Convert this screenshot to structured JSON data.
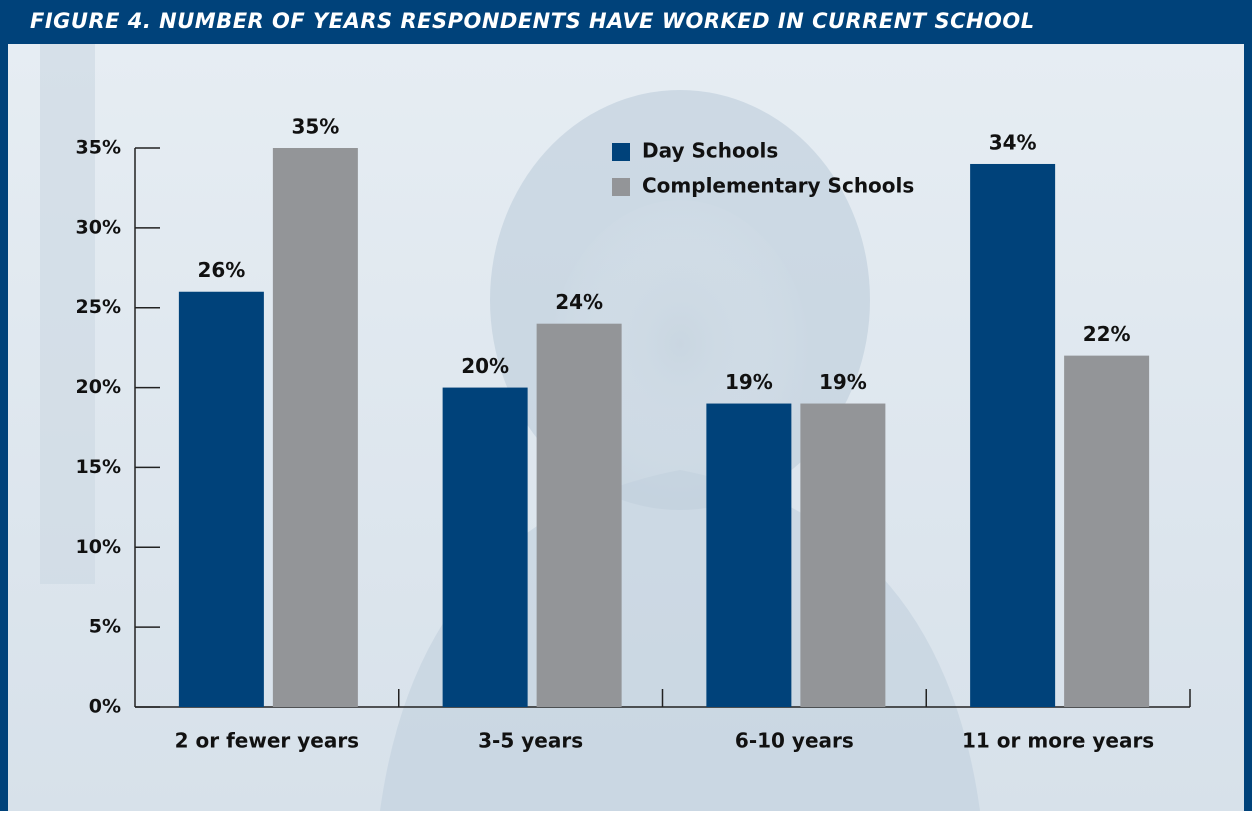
{
  "chart_data": {
    "type": "bar",
    "title": "FIGURE 4. NUMBER OF YEARS RESPONDENTS HAVE WORKED IN CURRENT SCHOOL",
    "categories": [
      "2 or fewer years",
      "3-5 years",
      "6-10 years",
      "11 or more years"
    ],
    "series": [
      {
        "name": "Day Schools",
        "color": "#00427a",
        "values": [
          26,
          20,
          19,
          34
        ],
        "value_labels": [
          "26%",
          "20%",
          "19%",
          "34%"
        ]
      },
      {
        "name": "Complementary Schools",
        "color": "#939598",
        "values": [
          35,
          24,
          19,
          22
        ],
        "value_labels": [
          "35%",
          "24%",
          "19%",
          "22%"
        ]
      }
    ],
    "ylim": [
      0,
      35
    ],
    "yticks": [
      {
        "value": 0,
        "label": "0%"
      },
      {
        "value": 5,
        "label": "5%"
      },
      {
        "value": 10,
        "label": "10%"
      },
      {
        "value": 15,
        "label": "15%"
      },
      {
        "value": 20,
        "label": "20%"
      },
      {
        "value": 25,
        "label": "25%"
      },
      {
        "value": 30,
        "label": "30%"
      },
      {
        "value": 35,
        "label": "35%"
      }
    ]
  }
}
